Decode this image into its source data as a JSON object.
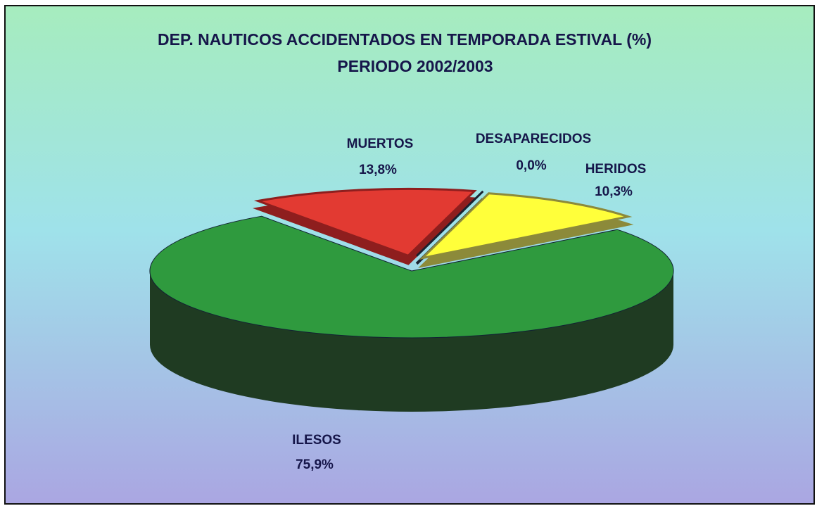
{
  "chart_data": {
    "type": "pie3d",
    "title": "DEP. NAUTICOS ACCIDENTADOS EN TEMPORADA ESTIVAL (%)",
    "subtitle": "PERIODO 2002/2003",
    "categories": [
      "MUERTOS",
      "DESAPARECIDOS",
      "HERIDOS",
      "ILESOS"
    ],
    "values": [
      13.8,
      0.0,
      10.3,
      75.9
    ],
    "value_labels": [
      "13,8%",
      "0,0%",
      "10,3%",
      "75,9%"
    ],
    "colors": [
      "#e23a32",
      "#2c3b52",
      "#ffff3a",
      "#2f9a3e"
    ],
    "side_colors": [
      "#8e1e1e",
      "#1a2230",
      "#8c8a3a",
      "#1f3b22"
    ]
  }
}
